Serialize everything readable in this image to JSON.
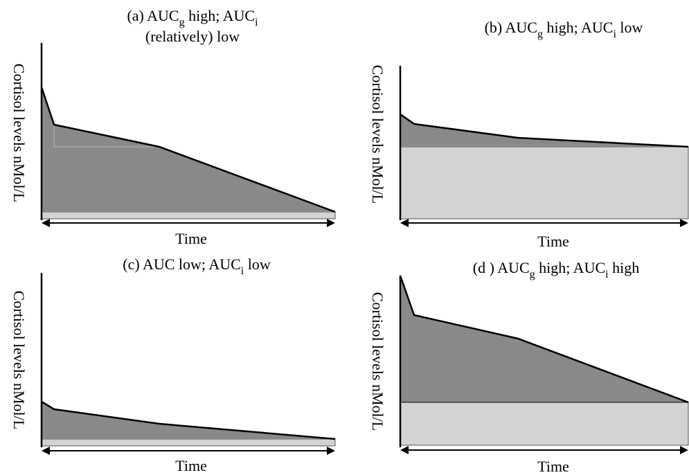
{
  "colors": {
    "auc_i_fill": "#898989",
    "auc_g_base_fill": "#d3d3d3",
    "line": "#000000",
    "background": "#ffffff"
  },
  "panels": [
    {
      "id": "a",
      "title": {
        "prefix": "(a)  ",
        "t1": "AUC",
        "s1": "g",
        "t2": " high; AUC",
        "s2": "i",
        "line2": "(relatively) low"
      },
      "ylabel": "Cortisol levels nMol/L",
      "xlabel": "Time"
    },
    {
      "id": "b",
      "title": {
        "prefix": "(b)  ",
        "t1": "AUC",
        "s1": "g",
        "t2": " high; AUC",
        "s2": "i",
        "t3": " low"
      },
      "ylabel": "Cortisol levels nMol/L",
      "xlabel": "Time"
    },
    {
      "id": "c",
      "title": {
        "prefix": "(c)  ",
        "t1": "AUC low; AUC",
        "s1": "i",
        "t2": " low"
      },
      "ylabel": "Cortisol levels nMol/L",
      "xlabel": "Time"
    },
    {
      "id": "d",
      "title": {
        "prefix": "(d ) ",
        "t1": "AUC",
        "s1": "g",
        "t2": " high; AUC",
        "s2": "i",
        "t3": " high"
      },
      "ylabel": "Cortisol levels nMol/L",
      "xlabel": "Time"
    }
  ]
}
